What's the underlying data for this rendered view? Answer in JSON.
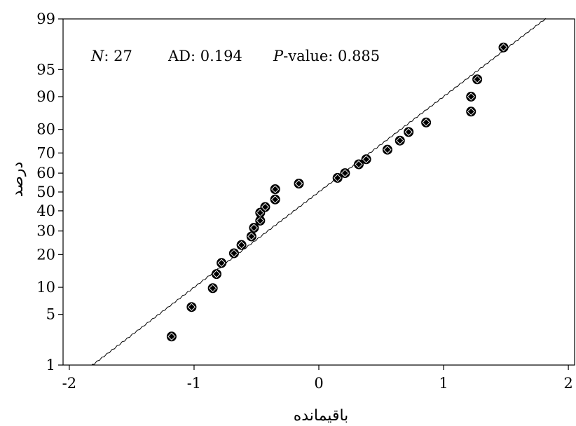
{
  "chart_data": {
    "type": "scatter",
    "subtype": "normal-probability-plot",
    "title": "",
    "xlabel": "باقیمانده",
    "ylabel": "درصد",
    "xlim": [
      -2.05,
      2.05
    ],
    "ylim_percent": [
      1,
      99
    ],
    "x_ticks": [
      "-2",
      "-1",
      "0",
      "1",
      "2"
    ],
    "x_tick_values": [
      -2,
      -1,
      0,
      1,
      2
    ],
    "y_ticks": [
      "1",
      "5",
      "10",
      "20",
      "30",
      "40",
      "50",
      "60",
      "70",
      "80",
      "90",
      "95",
      "99"
    ],
    "y_tick_values": [
      1,
      5,
      10,
      20,
      30,
      40,
      50,
      60,
      70,
      80,
      90,
      95,
      99
    ],
    "y_scale": "normal-probability",
    "grid": false,
    "stats": {
      "n_label": "N",
      "n_value": ": 27",
      "ad_text": "AD: 0.194",
      "p_label": "P",
      "p_value": "-value: 0.885"
    },
    "fit_line": {
      "mean": 0.0,
      "sd": 0.78,
      "x_range": [
        -1.82,
        1.82
      ]
    },
    "series": [
      {
        "points": [
          {
            "x": -1.18,
            "y": 2.6
          },
          {
            "x": -1.02,
            "y": 6.1
          },
          {
            "x": -0.85,
            "y": 9.8
          },
          {
            "x": -0.82,
            "y": 13.5
          },
          {
            "x": -0.78,
            "y": 17.0
          },
          {
            "x": -0.68,
            "y": 20.5
          },
          {
            "x": -0.62,
            "y": 23.8
          },
          {
            "x": -0.54,
            "y": 27.5
          },
          {
            "x": -0.52,
            "y": 31.5
          },
          {
            "x": -0.47,
            "y": 35.0
          },
          {
            "x": -0.47,
            "y": 39.0
          },
          {
            "x": -0.43,
            "y": 42.0
          },
          {
            "x": -0.35,
            "y": 46.0
          },
          {
            "x": -0.35,
            "y": 51.5
          },
          {
            "x": -0.16,
            "y": 54.5
          },
          {
            "x": 0.15,
            "y": 57.5
          },
          {
            "x": 0.21,
            "y": 60.0
          },
          {
            "x": 0.32,
            "y": 64.5
          },
          {
            "x": 0.38,
            "y": 67.0
          },
          {
            "x": 0.55,
            "y": 71.5
          },
          {
            "x": 0.65,
            "y": 75.5
          },
          {
            "x": 0.72,
            "y": 79.0
          },
          {
            "x": 0.86,
            "y": 82.5
          },
          {
            "x": 1.22,
            "y": 86.0
          },
          {
            "x": 1.22,
            "y": 90.0
          },
          {
            "x": 1.27,
            "y": 93.5
          },
          {
            "x": 1.48,
            "y": 97.4
          }
        ]
      }
    ]
  }
}
